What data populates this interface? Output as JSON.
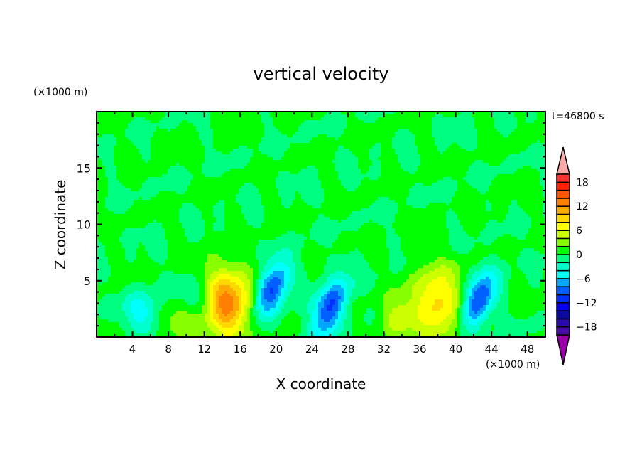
{
  "chart_data": {
    "type": "heatmap",
    "subtype": "filled-contour",
    "title": "vertical velocity",
    "xlabel": "X coordinate",
    "ylabel": "Z coordinate",
    "x_unit": "(×1000 m)",
    "y_unit": "(×1000 m)",
    "annotation": "t=46800 s",
    "xlim": [
      0,
      50
    ],
    "ylim": [
      0,
      20
    ],
    "x_ticks": [
      4,
      8,
      12,
      16,
      20,
      24,
      28,
      32,
      36,
      40,
      44,
      48
    ],
    "y_ticks": [
      5,
      10,
      15
    ],
    "colorbar": {
      "levels": [
        -20,
        -18,
        -16,
        -14,
        -12,
        -10,
        -8,
        -6,
        -4,
        -2,
        0,
        2,
        4,
        6,
        8,
        10,
        12,
        14,
        16,
        18,
        20
      ],
      "tick_labels": [
        "18",
        "12",
        "6",
        "0",
        "-6",
        "-12",
        "-18"
      ],
      "tick_values": [
        18,
        12,
        6,
        0,
        -6,
        -12,
        -18
      ],
      "colors": [
        "#4a0aa8",
        "#2a0aa8",
        "#0a0aa0",
        "#0000f0",
        "#0030ff",
        "#0060ff",
        "#00a8ff",
        "#00ffff",
        "#00ffcc",
        "#00ff80",
        "#00ff00",
        "#88ff00",
        "#ccff00",
        "#ffff00",
        "#ffd800",
        "#ffaa00",
        "#ff8000",
        "#ff5500",
        "#ff2200",
        "#ff3030"
      ],
      "over_color": "#ffaaaa",
      "under_color": "#9900aa",
      "extend": "both"
    },
    "features": [
      {
        "kind": "updraft",
        "x": 14.5,
        "z": 3.0,
        "peak": 13
      },
      {
        "kind": "downdraft",
        "x": 19.5,
        "z": 4.2,
        "peak": -11
      },
      {
        "kind": "downdraft",
        "x": 26.0,
        "z": 2.6,
        "peak": -11
      },
      {
        "kind": "updraft",
        "x": 33.5,
        "z": 1.6,
        "peak": 5
      },
      {
        "kind": "updraft",
        "x": 38.0,
        "z": 3.0,
        "peak": 9
      },
      {
        "kind": "downdraft",
        "x": 42.5,
        "z": 3.2,
        "peak": -11
      },
      {
        "kind": "updraft",
        "x": 9.8,
        "z": 1.5,
        "peak": 4
      },
      {
        "kind": "downdraft",
        "x": 5.0,
        "z": 2.2,
        "peak": -5
      },
      {
        "kind": "downdraft",
        "x": 11.2,
        "z": 3.2,
        "peak": -5
      }
    ]
  }
}
